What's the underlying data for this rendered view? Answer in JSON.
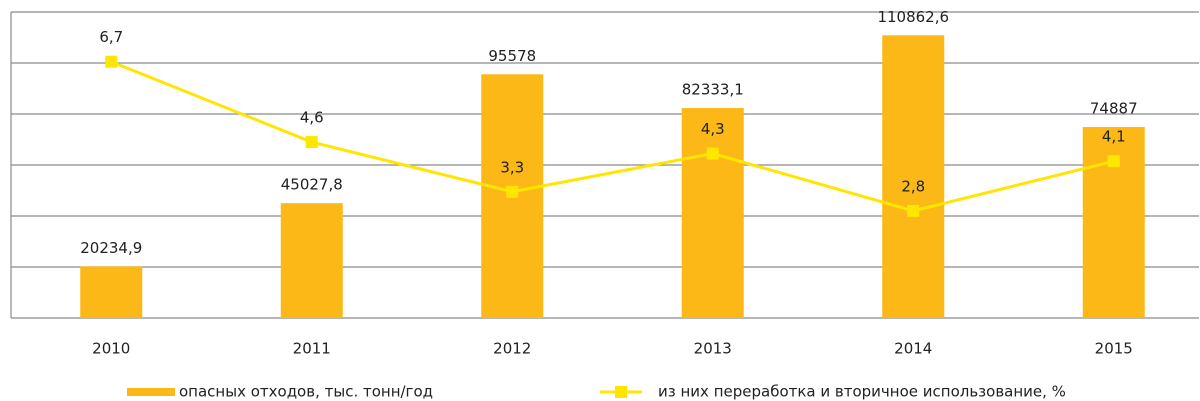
{
  "chart_data": {
    "type": "combo",
    "categories": [
      "2010",
      "2011",
      "2012",
      "2013",
      "2014",
      "2015"
    ],
    "series": [
      {
        "name": "опасных отходов, тыс. тонн/год",
        "type": "bar",
        "color": "#fbb817",
        "values": [
          20234.9,
          45027.8,
          95578,
          82333.1,
          110862.6,
          74887
        ],
        "value_labels": [
          "20234,9",
          "45027,8",
          "95578",
          "82333,1",
          "110862,6",
          "74887"
        ]
      },
      {
        "name": "из них переработка и вторичное использование, %",
        "type": "line",
        "axis": "y2",
        "color": "#ffe600",
        "values": [
          6.7,
          4.6,
          3.3,
          4.3,
          2.8,
          4.1
        ],
        "value_labels": [
          "6,7",
          "4,6",
          "3,3",
          "4,3",
          "2,8",
          "4,1"
        ]
      }
    ],
    "ylim": [
      0,
      120000
    ],
    "yticks": [
      0,
      20000,
      40000,
      60000,
      80000,
      100000,
      120000
    ],
    "y2lim": [
      0,
      8
    ],
    "grid": true
  }
}
